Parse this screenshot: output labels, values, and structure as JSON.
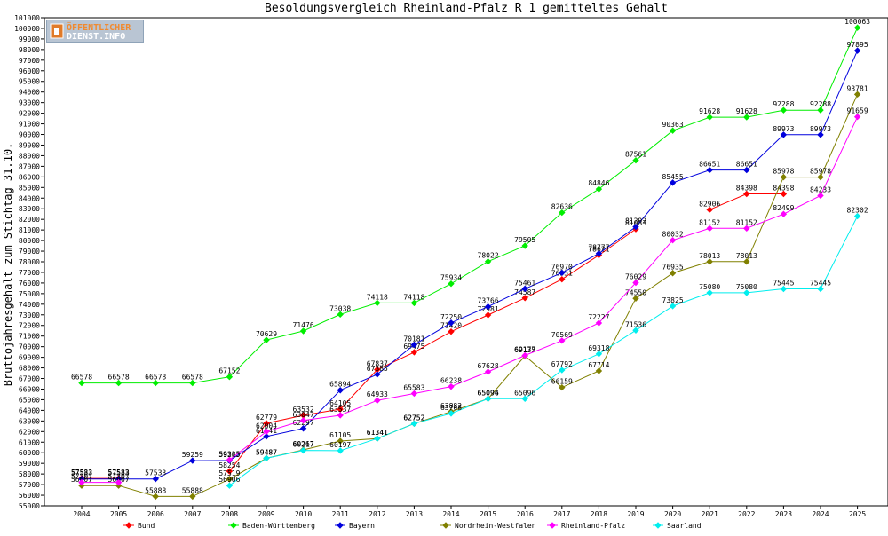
{
  "logo": {
    "line1": "ÖFFENTLICHER",
    "line2": "DIENST.INFO"
  },
  "chart_data": {
    "type": "line",
    "title": "Besoldungsvergleich Rheinland-Pfalz R 1 gemitteltes Gehalt",
    "xlabel": "",
    "ylabel": "Bruttojahresgehalt zum Stichtag 31.10.",
    "ylim": [
      55000,
      101000
    ],
    "yticks": [
      55000,
      56000,
      57000,
      58000,
      59000,
      60000,
      61000,
      62000,
      63000,
      64000,
      65000,
      66000,
      67000,
      68000,
      69000,
      70000,
      71000,
      72000,
      73000,
      74000,
      75000,
      76000,
      77000,
      78000,
      79000,
      80000,
      81000,
      82000,
      83000,
      84000,
      85000,
      86000,
      87000,
      88000,
      89000,
      90000,
      91000,
      92000,
      93000,
      94000,
      95000,
      96000,
      97000,
      98000,
      99000,
      100000,
      101000
    ],
    "x": [
      2004,
      2005,
      2006,
      2007,
      2008,
      2009,
      2010,
      2011,
      2012,
      2013,
      2014,
      2015,
      2016,
      2017,
      2018,
      2019,
      2020,
      2021,
      2022,
      2023,
      2024,
      2025
    ],
    "legend_position": "bottom",
    "grid": false,
    "series": [
      {
        "name": "Bund",
        "color": "#ff0000",
        "values": [
          57583,
          57583,
          null,
          null,
          58254,
          62779,
          63532,
          64105,
          67837,
          69475,
          71420,
          72981,
          74587,
          76351,
          78621,
          81083,
          null,
          82906,
          84398,
          84398,
          null,
          null
        ]
      },
      {
        "name": "Baden-Württemberg",
        "color": "#00ee00",
        "values": [
          66578,
          66578,
          66578,
          66578,
          67152,
          70629,
          71476,
          73038,
          74118,
          74118,
          75934,
          78022,
          79505,
          82636,
          84846,
          87561,
          90363,
          91628,
          91628,
          92288,
          92288,
          100063
        ]
      },
      {
        "name": "Bayern",
        "color": "#0000dd",
        "values": [
          57533,
          57533,
          57533,
          59259,
          59265,
          61541,
          62297,
          65894,
          67385,
          70181,
          72250,
          73766,
          75461,
          76970,
          78777,
          81292,
          85455,
          86651,
          86651,
          89973,
          89973,
          97895
        ]
      },
      {
        "name": "Nordrhein-Westfalen",
        "color": "#808000",
        "values": [
          56907,
          56907,
          55888,
          55888,
          57519,
          59487,
          60267,
          61105,
          61341,
          62752,
          63882,
          65094,
          69135,
          66159,
          67714,
          74550,
          76935,
          78013,
          78013,
          85978,
          85978,
          93781
        ]
      },
      {
        "name": "Rheinland-Pfalz",
        "color": "#ff00ff",
        "values": [
          57207,
          57207,
          null,
          null,
          59325,
          62004,
          63047,
          63537,
          64933,
          65583,
          66238,
          67628,
          69177,
          70569,
          72227,
          76029,
          80032,
          81152,
          81152,
          82499,
          84233,
          91659
        ]
      },
      {
        "name": "Saarland",
        "color": "#00eeee",
        "values": [
          null,
          null,
          null,
          null,
          56906,
          59487,
          60217,
          60197,
          61341,
          62752,
          63708,
          65096,
          65096,
          67792,
          69318,
          71536,
          73825,
          75080,
          75080,
          75445,
          75445,
          82302
        ]
      }
    ]
  }
}
